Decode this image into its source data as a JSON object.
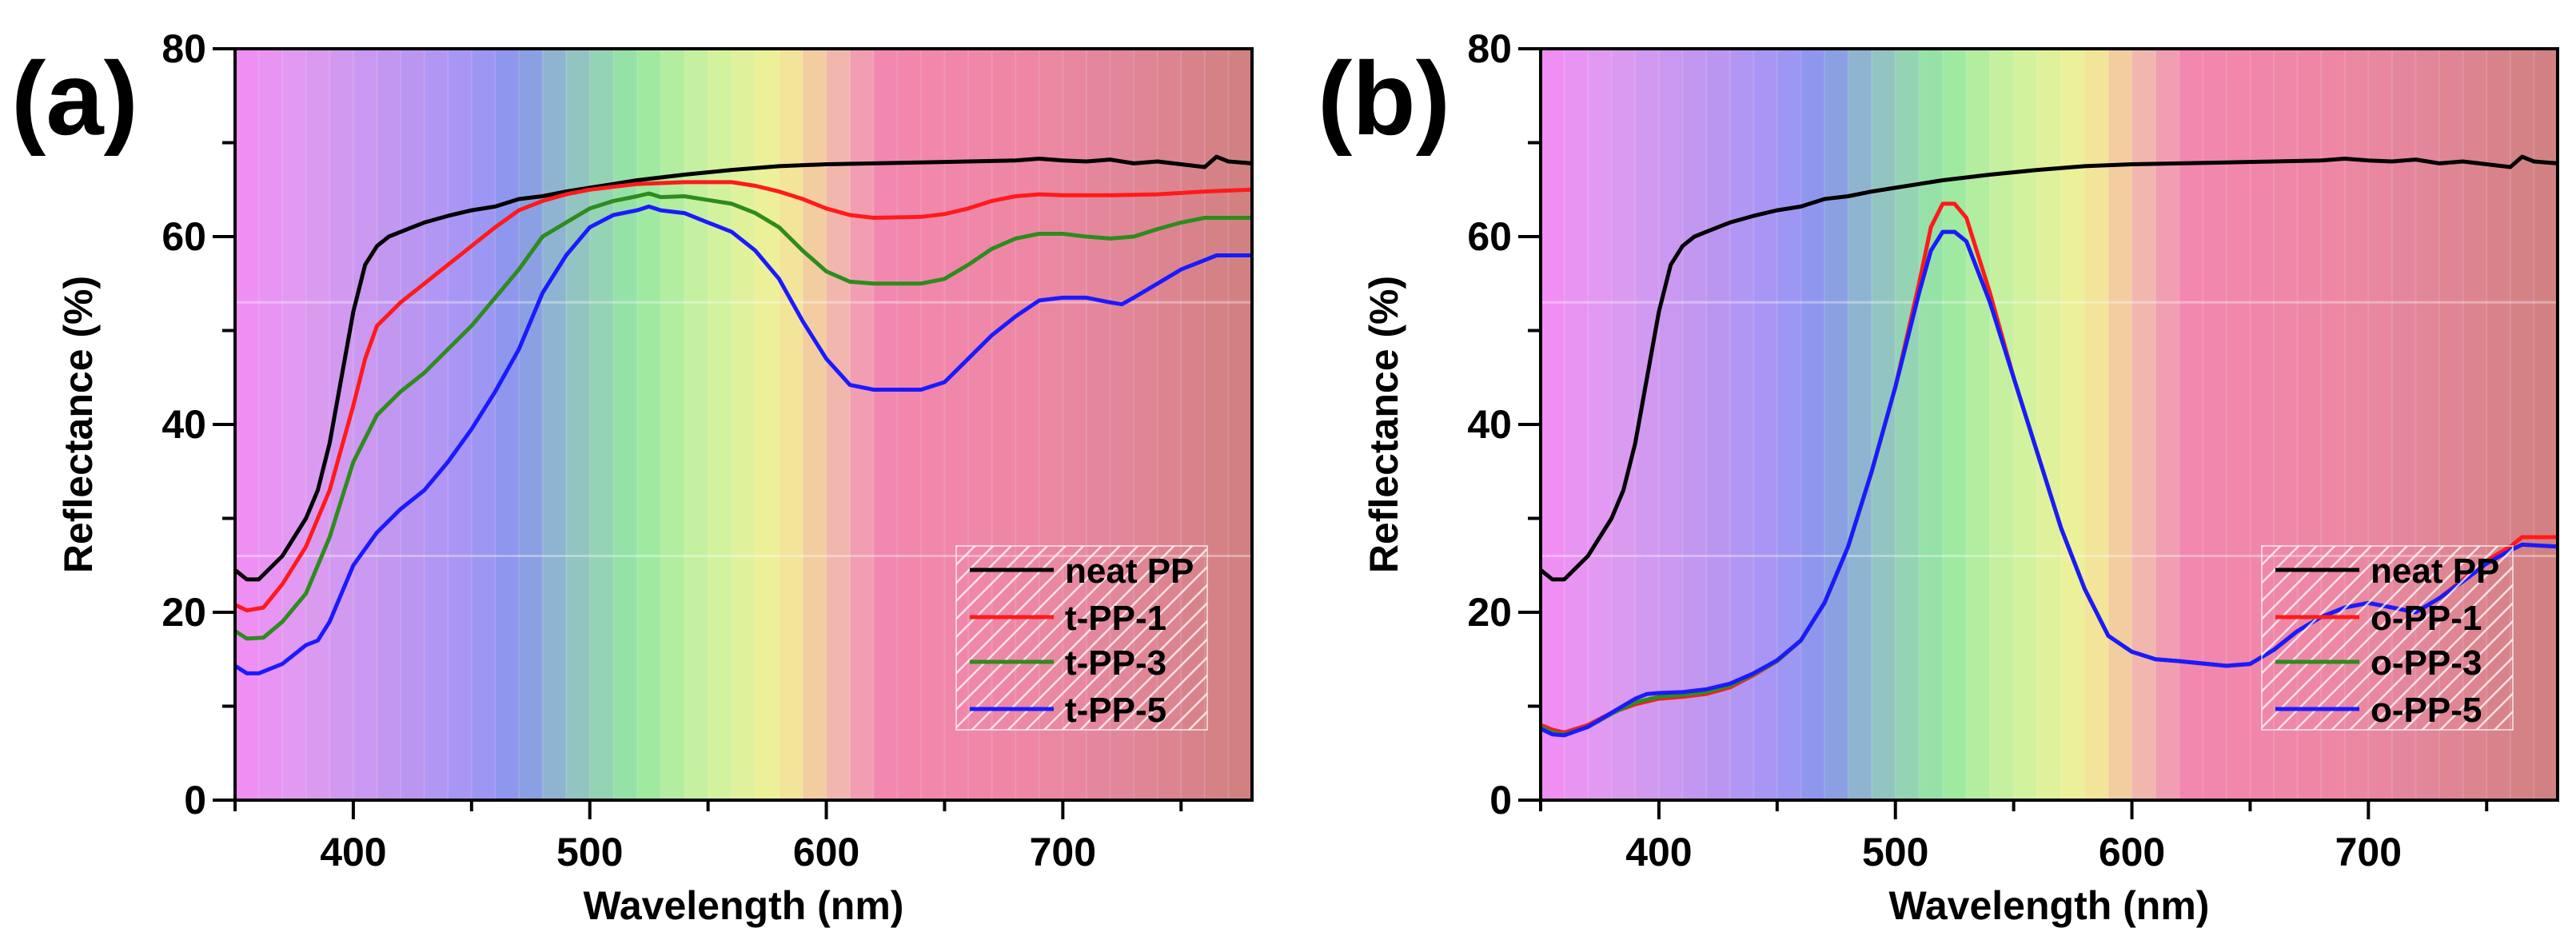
{
  "chart_data": [
    {
      "type": "line",
      "panel_label": "(a)",
      "xlabel": "Wavelength (nm)",
      "ylabel": "Reflectance (%)",
      "xlim": [
        350,
        780
      ],
      "ylim": [
        0,
        80
      ],
      "xticks": [
        400,
        500,
        600,
        700
      ],
      "yticks": [
        0,
        20,
        40,
        60,
        80
      ],
      "legend_position": "lower-right",
      "series": [
        {
          "name": "neat PP",
          "color": "#000000",
          "x": [
            350,
            355,
            360,
            370,
            380,
            385,
            390,
            395,
            400,
            405,
            410,
            415,
            420,
            430,
            440,
            450,
            460,
            470,
            480,
            490,
            500,
            510,
            520,
            530,
            540,
            560,
            580,
            600,
            620,
            640,
            660,
            680,
            690,
            700,
            710,
            720,
            730,
            740,
            750,
            760,
            765,
            770,
            780
          ],
          "y": [
            24.5,
            23.5,
            23.5,
            26,
            30,
            33,
            38,
            45,
            52,
            57,
            59,
            60,
            60.5,
            61.5,
            62.2,
            62.8,
            63.2,
            64,
            64.3,
            64.8,
            65.2,
            65.6,
            66,
            66.3,
            66.6,
            67.1,
            67.5,
            67.7,
            67.8,
            67.9,
            68,
            68.1,
            68.3,
            68.1,
            68,
            68.2,
            67.8,
            68,
            67.7,
            67.4,
            68.5,
            68,
            67.8
          ]
        },
        {
          "name": "t-PP-1",
          "color": "#ff1a1a",
          "x": [
            350,
            355,
            362,
            370,
            380,
            390,
            400,
            405,
            410,
            420,
            430,
            440,
            450,
            460,
            470,
            480,
            490,
            500,
            520,
            540,
            560,
            570,
            580,
            590,
            600,
            610,
            620,
            640,
            650,
            660,
            670,
            680,
            690,
            700,
            720,
            740,
            760,
            780
          ],
          "y": [
            20.8,
            20.2,
            20.5,
            23,
            27,
            33,
            42,
            47,
            50.5,
            53,
            55,
            57,
            59,
            61,
            62.8,
            63.8,
            64.5,
            65,
            65.6,
            65.8,
            65.8,
            65.4,
            64.8,
            64,
            63,
            62.3,
            62,
            62.1,
            62.4,
            63,
            63.8,
            64.3,
            64.5,
            64.4,
            64.4,
            64.5,
            64.8,
            65
          ]
        },
        {
          "name": "t-PP-3",
          "color": "#2e8b1e",
          "x": [
            350,
            355,
            362,
            370,
            380,
            390,
            400,
            410,
            420,
            430,
            440,
            450,
            460,
            470,
            480,
            490,
            500,
            510,
            520,
            525,
            530,
            540,
            550,
            560,
            570,
            580,
            590,
            600,
            610,
            620,
            640,
            650,
            660,
            670,
            680,
            690,
            700,
            710,
            720,
            730,
            740,
            750,
            760,
            780
          ],
          "y": [
            18,
            17.2,
            17.3,
            19,
            22,
            28,
            36,
            41,
            43.5,
            45.5,
            48,
            50.5,
            53.5,
            56.5,
            60,
            61.5,
            63,
            63.8,
            64.3,
            64.6,
            64.2,
            64.3,
            63.9,
            63.5,
            62.5,
            61,
            58.5,
            56.3,
            55.2,
            55,
            55,
            55.5,
            57,
            58.7,
            59.8,
            60.3,
            60.3,
            60,
            59.8,
            60,
            60.8,
            61.5,
            62,
            62
          ]
        },
        {
          "name": "t-PP-5",
          "color": "#1a1aff",
          "x": [
            350,
            355,
            360,
            370,
            380,
            385,
            390,
            400,
            410,
            420,
            430,
            440,
            450,
            460,
            470,
            480,
            490,
            500,
            510,
            520,
            525,
            530,
            540,
            550,
            560,
            570,
            580,
            590,
            600,
            610,
            620,
            640,
            650,
            660,
            670,
            680,
            690,
            700,
            710,
            720,
            725,
            730,
            740,
            750,
            760,
            765,
            780
          ],
          "y": [
            14.3,
            13.5,
            13.5,
            14.5,
            16.5,
            17,
            19,
            25,
            28.5,
            31,
            33,
            36,
            39.5,
            43.5,
            48,
            54,
            58,
            61,
            62.3,
            62.8,
            63.2,
            62.8,
            62.5,
            61.5,
            60.5,
            58.5,
            55.5,
            51,
            47,
            44.2,
            43.7,
            43.7,
            44.5,
            47,
            49.5,
            51.5,
            53.2,
            53.5,
            53.5,
            53,
            52.8,
            53.5,
            55,
            56.5,
            57.5,
            58,
            58
          ]
        }
      ]
    },
    {
      "type": "line",
      "panel_label": "(b)",
      "xlabel": "Wavelength (nm)",
      "ylabel": "Reflectance (%)",
      "xlim": [
        350,
        780
      ],
      "ylim": [
        0,
        80
      ],
      "xticks": [
        400,
        500,
        600,
        700
      ],
      "yticks": [
        0,
        20,
        40,
        60,
        80
      ],
      "legend_position": "lower-right",
      "series": [
        {
          "name": "neat PP",
          "color": "#000000",
          "x": [
            350,
            355,
            360,
            370,
            380,
            385,
            390,
            395,
            400,
            405,
            410,
            415,
            420,
            430,
            440,
            450,
            460,
            470,
            480,
            490,
            500,
            510,
            520,
            530,
            540,
            560,
            580,
            600,
            620,
            640,
            660,
            680,
            690,
            700,
            710,
            720,
            730,
            740,
            750,
            760,
            765,
            770,
            780
          ],
          "y": [
            24.5,
            23.5,
            23.5,
            26,
            30,
            33,
            38,
            45,
            52,
            57,
            59,
            60,
            60.5,
            61.5,
            62.2,
            62.8,
            63.2,
            64,
            64.3,
            64.8,
            65.2,
            65.6,
            66,
            66.3,
            66.6,
            67.1,
            67.5,
            67.7,
            67.8,
            67.9,
            68,
            68.1,
            68.3,
            68.1,
            68,
            68.2,
            67.8,
            68,
            67.7,
            67.4,
            68.5,
            68,
            67.8
          ]
        },
        {
          "name": "o-PP-1",
          "color": "#ff1a1a",
          "x": [
            350,
            355,
            360,
            370,
            380,
            390,
            400,
            410,
            420,
            430,
            440,
            450,
            460,
            470,
            480,
            490,
            500,
            510,
            515,
            520,
            525,
            530,
            540,
            550,
            560,
            570,
            580,
            590,
            600,
            610,
            620,
            640,
            650,
            660,
            670,
            680,
            690,
            700,
            710,
            720,
            730,
            740,
            750,
            760,
            765,
            780
          ],
          "y": [
            8,
            7.5,
            7.2,
            8,
            9.3,
            10.2,
            10.8,
            11,
            11.3,
            12,
            13.3,
            14.8,
            17,
            21,
            27,
            35,
            44,
            55,
            61,
            63.5,
            63.5,
            62,
            54,
            45,
            37,
            29,
            22.5,
            17.5,
            15.8,
            15,
            14.8,
            14.3,
            14.5,
            16,
            18,
            19.5,
            20.5,
            21,
            20.5,
            20,
            21.5,
            23.5,
            25.5,
            27,
            28,
            28
          ]
        },
        {
          "name": "o-PP-3",
          "color": "#2e8b1e",
          "x": [
            350,
            355,
            360,
            370,
            380,
            390,
            400,
            410,
            420,
            430,
            440,
            450,
            460,
            470,
            480,
            490,
            500,
            510,
            515,
            520,
            525,
            530,
            540,
            550,
            560,
            570,
            580,
            590,
            600,
            610,
            620,
            640,
            650,
            660,
            670,
            680,
            690,
            700,
            710,
            720,
            730,
            740,
            750,
            760,
            765,
            780
          ],
          "y": [
            7.8,
            7.2,
            7,
            7.8,
            9.2,
            10.4,
            11,
            11.2,
            11.5,
            12.2,
            13.4,
            14.8,
            17,
            21,
            27,
            35,
            44,
            54,
            58.5,
            60.5,
            60.5,
            59.5,
            53,
            45,
            37,
            29,
            22.5,
            17.5,
            15.8,
            15,
            14.8,
            14.3,
            14.5,
            16,
            18,
            19.5,
            20.5,
            21,
            20.5,
            20,
            21.5,
            23.3,
            25.2,
            26.6,
            27.2,
            27
          ]
        },
        {
          "name": "o-PP-5",
          "color": "#1a1aff",
          "x": [
            350,
            355,
            360,
            370,
            380,
            390,
            395,
            400,
            410,
            420,
            430,
            440,
            450,
            460,
            470,
            480,
            490,
            500,
            510,
            515,
            520,
            525,
            530,
            540,
            550,
            560,
            570,
            580,
            590,
            600,
            610,
            620,
            640,
            650,
            660,
            670,
            680,
            690,
            700,
            710,
            720,
            730,
            740,
            750,
            760,
            765,
            780
          ],
          "y": [
            7.6,
            7,
            6.9,
            7.8,
            9.3,
            10.8,
            11.3,
            11.4,
            11.5,
            11.8,
            12.4,
            13.5,
            14.9,
            17,
            21,
            27,
            35,
            44,
            54,
            58.5,
            60.5,
            60.5,
            59.5,
            53,
            45,
            37,
            29,
            22.5,
            17.5,
            15.8,
            15,
            14.8,
            14.3,
            14.5,
            16,
            18,
            19.5,
            20.5,
            21,
            20.5,
            20,
            21.5,
            23.3,
            25.2,
            26.6,
            27.2,
            27
          ]
        }
      ]
    }
  ]
}
